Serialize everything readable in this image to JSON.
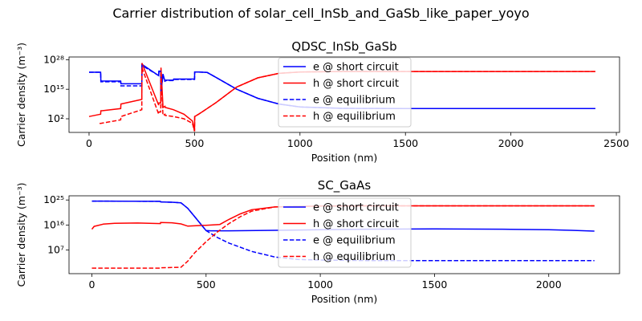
{
  "figure": {
    "suptitle": "Carrier distribution of solar_cell_InSb_and_GaSb_like_paper_yoyo"
  },
  "legend_labels": [
    "e @ short circuit",
    "h @ short circuit",
    "e @ equilibrium",
    "h @ equilibrium"
  ],
  "colors": {
    "electron": "#0000ff",
    "hole": "#ff0000",
    "axes": "#000000",
    "background": "#ffffff"
  },
  "chart_data": [
    {
      "type": "line",
      "title": "QDSC_InSb_GaSb",
      "xlabel": "Position (nm)",
      "ylabel": "Carrier density (m⁻³)",
      "yscale": "log",
      "xlim": [
        -95,
        2515
      ],
      "ylim_log10": [
        -4,
        29.2
      ],
      "xticks": [
        0,
        500,
        1000,
        1500,
        2000,
        2500
      ],
      "yticks_log10": [
        2,
        15,
        28
      ],
      "grid": false,
      "legend_position": "top-center",
      "series": [
        {
          "name": "e @ short circuit",
          "style": "solid",
          "color": "#0000ff",
          "x": [
            0,
            55,
            56,
            150,
            151,
            250,
            251,
            330,
            331,
            340,
            341,
            350,
            351,
            360,
            361,
            400,
            401,
            500,
            501,
            520,
            560,
            600,
            700,
            800,
            900,
            1000,
            1200,
            1500,
            2000,
            2400
          ],
          "y_log10": [
            22.5,
            22.5,
            18.6,
            18.6,
            17.4,
            17.4,
            26.0,
            21.0,
            23.0,
            23.0,
            13.0,
            21.5,
            21.5,
            18.5,
            19.0,
            19.0,
            19.5,
            19.5,
            22.6,
            22.6,
            22.4,
            20.3,
            15.0,
            11.0,
            8.5,
            7.2,
            6.6,
            6.5,
            6.5,
            6.5
          ]
        },
        {
          "name": "h @ short circuit",
          "style": "solid",
          "color": "#ff0000",
          "x": [
            0,
            55,
            56,
            150,
            151,
            250,
            251,
            330,
            331,
            340,
            341,
            350,
            351,
            360,
            361,
            400,
            450,
            490,
            500,
            501,
            520,
            600,
            700,
            800,
            900,
            1000,
            1200,
            1500,
            2000,
            2400
          ],
          "y_log10": [
            3.0,
            4.0,
            5.5,
            6.5,
            8.5,
            10.5,
            26.5,
            8.0,
            9.0,
            9.0,
            24.5,
            8.0,
            7.0,
            7.5,
            7.0,
            6.0,
            4.0,
            1.0,
            -3.5,
            3.0,
            4.0,
            9.0,
            16.0,
            20.0,
            22.0,
            22.6,
            22.8,
            22.8,
            22.8,
            22.8
          ]
        },
        {
          "name": "e @ equilibrium",
          "style": "dashed",
          "color": "#0000ff",
          "x": [
            0,
            55,
            56,
            150,
            151,
            250,
            251,
            330,
            331,
            340,
            341,
            350,
            351,
            360,
            361,
            400,
            401,
            500,
            501,
            520,
            560,
            600,
            700,
            800,
            900,
            1000,
            1200,
            1500,
            2000,
            2400
          ],
          "y_log10": [
            22.5,
            22.5,
            18.3,
            18.3,
            16.5,
            16.5,
            25.5,
            21.0,
            22.8,
            22.8,
            13.0,
            21.2,
            21.2,
            18.3,
            18.8,
            18.8,
            19.3,
            19.3,
            22.6,
            22.6,
            22.4,
            20.3,
            15.0,
            11.0,
            8.5,
            7.2,
            6.6,
            6.5,
            6.5,
            6.5
          ]
        },
        {
          "name": "h @ equilibrium",
          "style": "dashed",
          "color": "#ff0000",
          "x": [
            50,
            55,
            56,
            150,
            151,
            250,
            251,
            330,
            331,
            340,
            341,
            350,
            351,
            360,
            361,
            400,
            450,
            490,
            500,
            501,
            520,
            600,
            700,
            800,
            900,
            1000,
            1200,
            1500,
            2000,
            2400
          ],
          "y_log10": [
            0.0,
            0.0,
            0.0,
            1.5,
            3.0,
            6.0,
            24.5,
            4.0,
            5.0,
            5.0,
            23.0,
            4.0,
            3.5,
            4.0,
            3.5,
            3.0,
            2.0,
            0.0,
            -3.5,
            3.0,
            4.0,
            9.0,
            16.0,
            20.0,
            22.0,
            22.6,
            22.8,
            22.8,
            22.8,
            22.8
          ]
        }
      ]
    },
    {
      "type": "line",
      "title": "SC_GaAs",
      "xlabel": "Position (nm)",
      "ylabel": "Carrier density (m⁻³)",
      "yscale": "log",
      "xlim": [
        -100,
        2310
      ],
      "ylim_log10": [
        -1.5,
        26.5
      ],
      "xticks": [
        0,
        500,
        1000,
        1500,
        2000
      ],
      "yticks_log10": [
        7,
        16,
        25
      ],
      "grid": false,
      "legend_position": "top-center",
      "series": [
        {
          "name": "e @ short circuit",
          "style": "solid",
          "color": "#0000ff",
          "x": [
            0,
            300,
            301,
            350,
            390,
            420,
            450,
            480,
            500,
            520,
            600,
            800,
            1000,
            1200,
            1500,
            1800,
            2000,
            2100,
            2200
          ],
          "y_log10": [
            24.6,
            24.5,
            24.3,
            24.2,
            24.0,
            22.0,
            19.0,
            16.0,
            14.0,
            13.9,
            13.9,
            14.1,
            14.3,
            14.5,
            14.6,
            14.5,
            14.3,
            14.1,
            13.8
          ]
        },
        {
          "name": "h @ short circuit",
          "style": "solid",
          "color": "#ff0000",
          "x": [
            0,
            10,
            50,
            100,
            200,
            300,
            301,
            350,
            390,
            420,
            500,
            560,
            600,
            650,
            700,
            800,
            1000,
            1200,
            1500,
            2000,
            2200
          ],
          "y_log10": [
            14.5,
            15.5,
            16.3,
            16.6,
            16.7,
            16.5,
            16.9,
            16.8,
            16.4,
            15.6,
            15.9,
            16.2,
            18.0,
            20.0,
            21.5,
            22.5,
            22.8,
            22.9,
            22.9,
            22.9,
            22.9
          ]
        },
        {
          "name": "e @ equilibrium",
          "style": "dashed",
          "color": "#0000ff",
          "x": [
            0,
            300,
            301,
            350,
            390,
            420,
            450,
            480,
            500,
            550,
            600,
            700,
            800,
            900,
            1000,
            1200,
            1500,
            2000,
            2200
          ],
          "y_log10": [
            24.6,
            24.5,
            24.3,
            24.2,
            24.0,
            22.0,
            19.0,
            16.0,
            14.0,
            11.5,
            9.5,
            6.5,
            4.5,
            3.6,
            3.4,
            3.2,
            3.2,
            3.2,
            3.2
          ]
        },
        {
          "name": "h @ equilibrium",
          "style": "dashed",
          "color": "#ff0000",
          "x": [
            0,
            300,
            301,
            390,
            420,
            450,
            500,
            550,
            600,
            650,
            700,
            800,
            1000,
            1200,
            1500,
            2000,
            2200
          ],
          "y_log10": [
            0.5,
            0.5,
            0.6,
            0.8,
            3.0,
            6.0,
            10.0,
            13.5,
            16.5,
            19.0,
            21.0,
            22.5,
            22.8,
            22.9,
            22.9,
            22.9,
            22.9
          ]
        }
      ]
    }
  ]
}
